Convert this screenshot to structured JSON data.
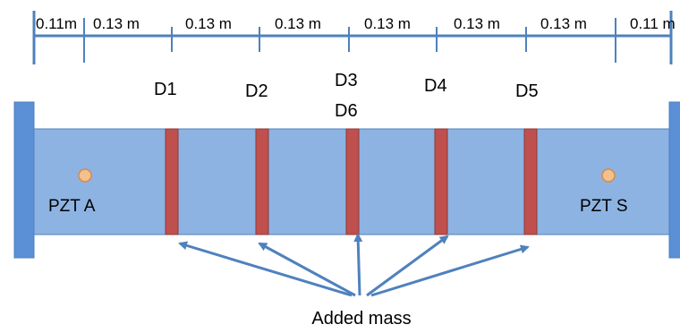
{
  "colors": {
    "beam_fill": "#8db3e2",
    "beam_stroke": "#4f81bd",
    "end_plate_fill": "#5b8fd6",
    "mass_fill": "#c0504d",
    "mass_stroke": "#8c3a38",
    "dimension_line": "#4f81bd",
    "arrow": "#4f81bd",
    "sensor_fill": "#f4c08c",
    "sensor_stroke": "#d48b4c"
  },
  "dimensions": {
    "segments": [
      "0.11m",
      "0.13 m",
      "0.13 m",
      "0.13 m",
      "0.13 m",
      "0.13 m",
      "0.13 m",
      "0.11 m"
    ]
  },
  "positions": {
    "d1": "D1",
    "d2": "D2",
    "d3": "D3",
    "d4": "D4",
    "d5": "D5",
    "d6": "D6"
  },
  "sensors": {
    "actuator": "PZT A",
    "sensor": "PZT S"
  },
  "caption": "Added mass"
}
